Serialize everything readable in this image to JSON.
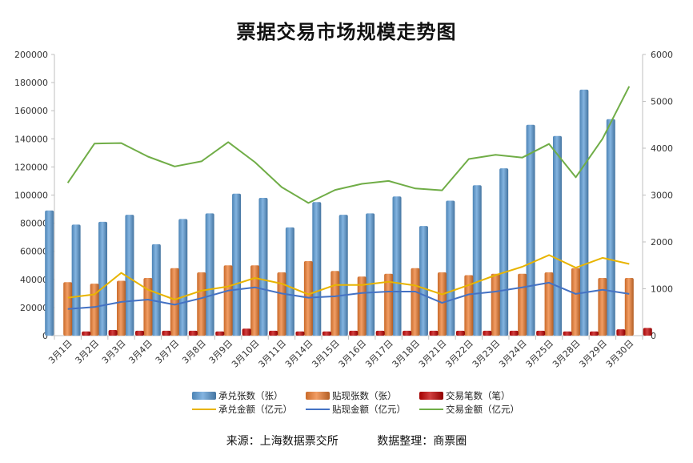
{
  "chart_data": {
    "type": "bar",
    "title": "票据交易市场规模走势图",
    "categories": [
      "3月1日",
      "3月2日",
      "3月3日",
      "3月4日",
      "3月7日",
      "3月8日",
      "3月9日",
      "3月10日",
      "3月11日",
      "3月14日",
      "3月15日",
      "3月16日",
      "3月17日",
      "3月18日",
      "3月21日",
      "3月22日",
      "3月23日",
      "3月24日",
      "3月25日",
      "3月28日",
      "3月29日",
      "3月30日"
    ],
    "y_left": {
      "min": 0,
      "max": 200000,
      "step": 20000,
      "ticks": [
        "0",
        "20000",
        "40000",
        "60000",
        "80000",
        "100000",
        "120000",
        "140000",
        "160000",
        "180000",
        "200000"
      ]
    },
    "y_right": {
      "min": 0,
      "max": 6000,
      "step": 1000,
      "ticks": [
        "0",
        "1000",
        "2000",
        "3000",
        "4000",
        "5000",
        "6000"
      ]
    },
    "series": [
      {
        "name": "承兑张数（张）",
        "kind": "bar",
        "axis": "left",
        "color": "#5b9bd5",
        "values": [
          89000,
          79000,
          81000,
          86000,
          65000,
          83000,
          87000,
          101000,
          98000,
          77000,
          95000,
          86000,
          87000,
          99000,
          78000,
          96000,
          107000,
          119000,
          150000,
          142000,
          175000,
          154000
        ]
      },
      {
        "name": "贴现张数（张）",
        "kind": "bar",
        "axis": "left",
        "color": "#ed7d31",
        "values": [
          38000,
          37000,
          39000,
          41000,
          48000,
          45000,
          50000,
          50000,
          45000,
          53000,
          46000,
          42000,
          44000,
          48000,
          45000,
          43000,
          44000,
          44000,
          45000,
          48000,
          41000,
          41000
        ]
      },
      {
        "name": "交易笔数（笔）",
        "kind": "bar",
        "axis": "left",
        "color": "#c00000",
        "values": [
          3000,
          4000,
          3500,
          3500,
          3500,
          3000,
          5000,
          3500,
          3000,
          3000,
          3500,
          3500,
          3500,
          3500,
          3500,
          3500,
          3500,
          3500,
          3000,
          3000,
          4500,
          5500
        ]
      },
      {
        "name": "承兑金额（亿元）",
        "kind": "line",
        "axis": "right",
        "color": "#e8b400",
        "values": [
          810,
          880,
          1340,
          980,
          770,
          960,
          1050,
          1230,
          1110,
          880,
          1080,
          1080,
          1150,
          1070,
          880,
          1080,
          1290,
          1470,
          1720,
          1450,
          1660,
          1530
        ]
      },
      {
        "name": "贴现金额（亿元）",
        "kind": "line",
        "axis": "right",
        "color": "#4472c4",
        "values": [
          570,
          610,
          720,
          770,
          660,
          800,
          960,
          1030,
          900,
          810,
          840,
          910,
          940,
          940,
          700,
          880,
          940,
          1030,
          1130,
          890,
          980,
          890
        ]
      },
      {
        "name": "交易金额（亿元）",
        "kind": "line",
        "axis": "right",
        "color": "#70ad47",
        "values": [
          3260,
          4100,
          4110,
          3820,
          3610,
          3720,
          4130,
          3700,
          3170,
          2830,
          3110,
          3240,
          3300,
          3140,
          3100,
          3770,
          3860,
          3800,
          4090,
          3380,
          4200,
          5320
        ]
      }
    ],
    "legend_position": "bottom",
    "grid": false
  },
  "footer": {
    "source": "来源：上海数据票交所",
    "compiled": "数据整理：商票圈"
  }
}
